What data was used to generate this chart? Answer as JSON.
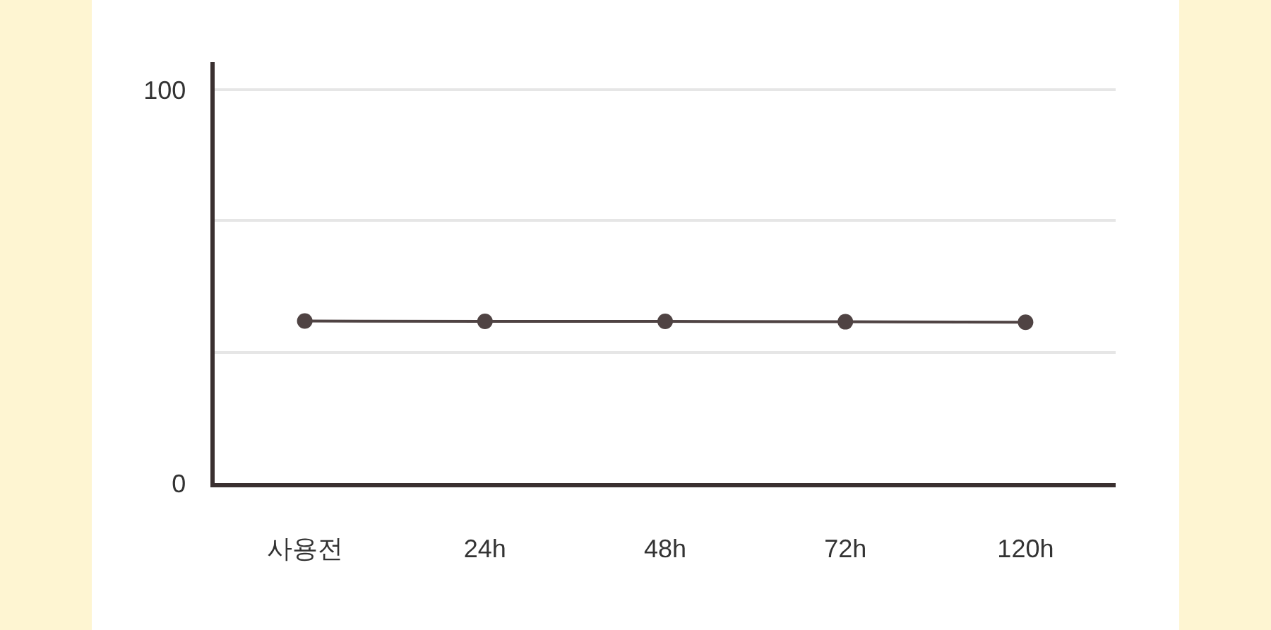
{
  "chart_data": {
    "type": "line",
    "categories": [
      "사용전",
      "24h",
      "48h",
      "72h",
      "120h"
    ],
    "series": [
      {
        "color": "#4f4343",
        "values": [
          41.2,
          41.1,
          41.1,
          41.0,
          40.9
        ]
      }
    ],
    "ylim": [
      0,
      107
    ],
    "yticks": [
      0,
      {
        "value": 33.3,
        "label": null
      },
      {
        "value": 66.7,
        "label": null
      },
      100
    ],
    "grid": "y",
    "marker": "circle",
    "line_style": "solid"
  }
}
